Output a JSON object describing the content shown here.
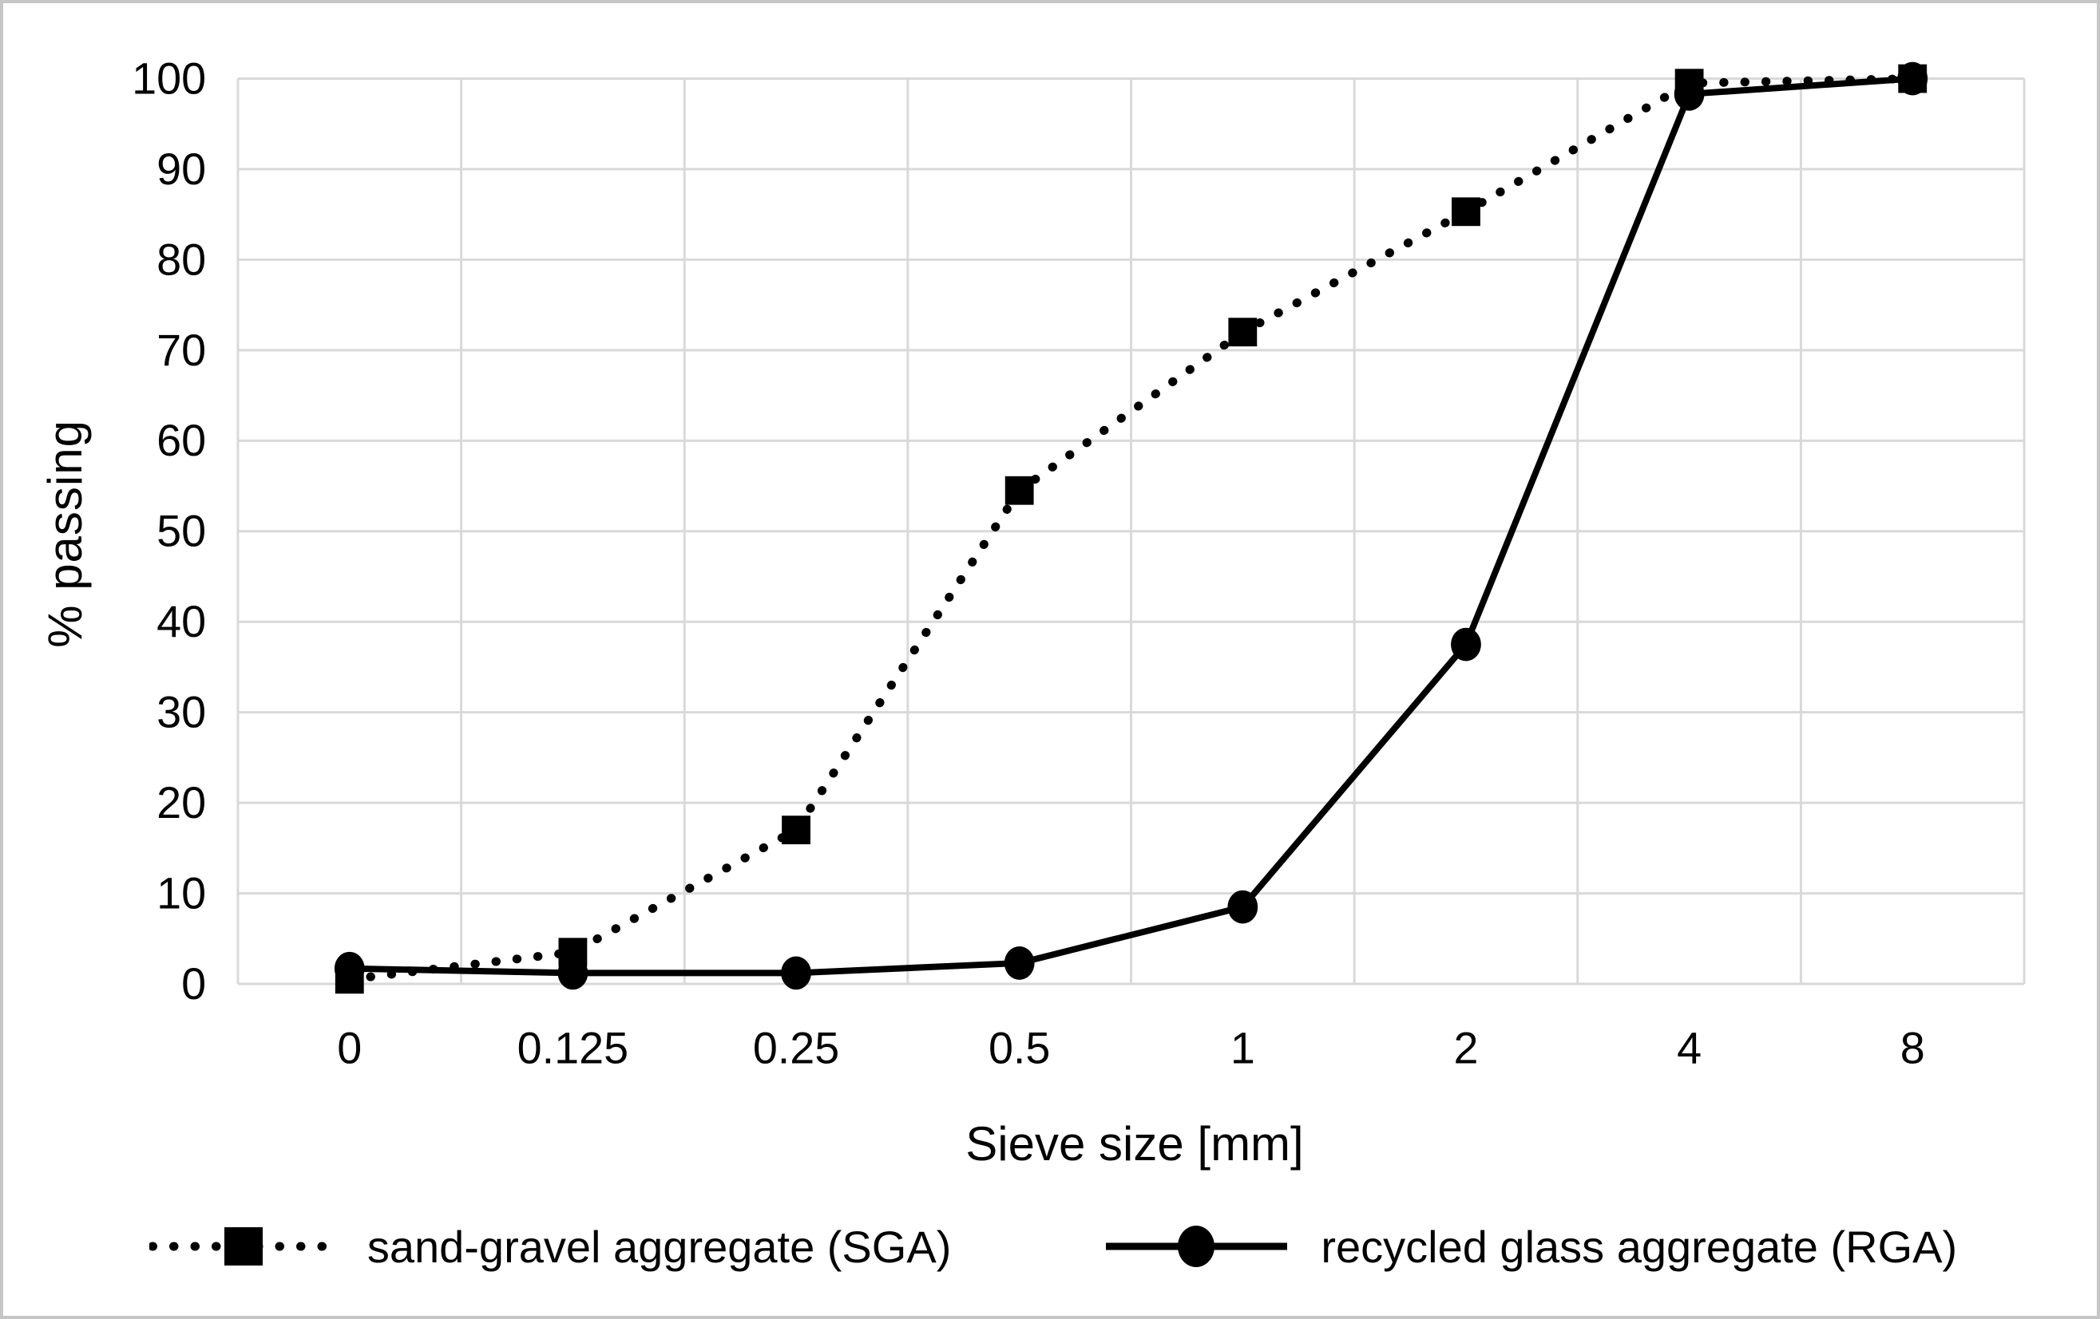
{
  "figure": {
    "background": "#ffffff",
    "border_color": "#c6c6c6"
  },
  "chart_data": {
    "type": "line",
    "title": "",
    "xlabel": "Sieve size [mm]",
    "ylabel": "% passing",
    "categories": [
      "0",
      "0.125",
      "0.25",
      "0.5",
      "1",
      "2",
      "4",
      "8"
    ],
    "series": [
      {
        "name": "sand-gravel aggregate (SGA)",
        "marker": "square",
        "line_style": "dotted",
        "color": "#000000",
        "values": [
          0.5,
          3.5,
          17,
          54.5,
          72,
          85.3,
          99.5,
          100
        ]
      },
      {
        "name": "recycled glass aggregate (RGA)",
        "marker": "circle",
        "line_style": "solid",
        "color": "#000000",
        "values": [
          1.7,
          1.2,
          1.2,
          2.3,
          8.5,
          37.5,
          98.3,
          100
        ]
      }
    ],
    "ylim": [
      0,
      100
    ],
    "yticks": [
      0,
      10,
      20,
      30,
      40,
      50,
      60,
      70,
      80,
      90,
      100
    ],
    "grid": true,
    "gridline_color": "#d9d9d9",
    "legend_position": "bottom"
  }
}
